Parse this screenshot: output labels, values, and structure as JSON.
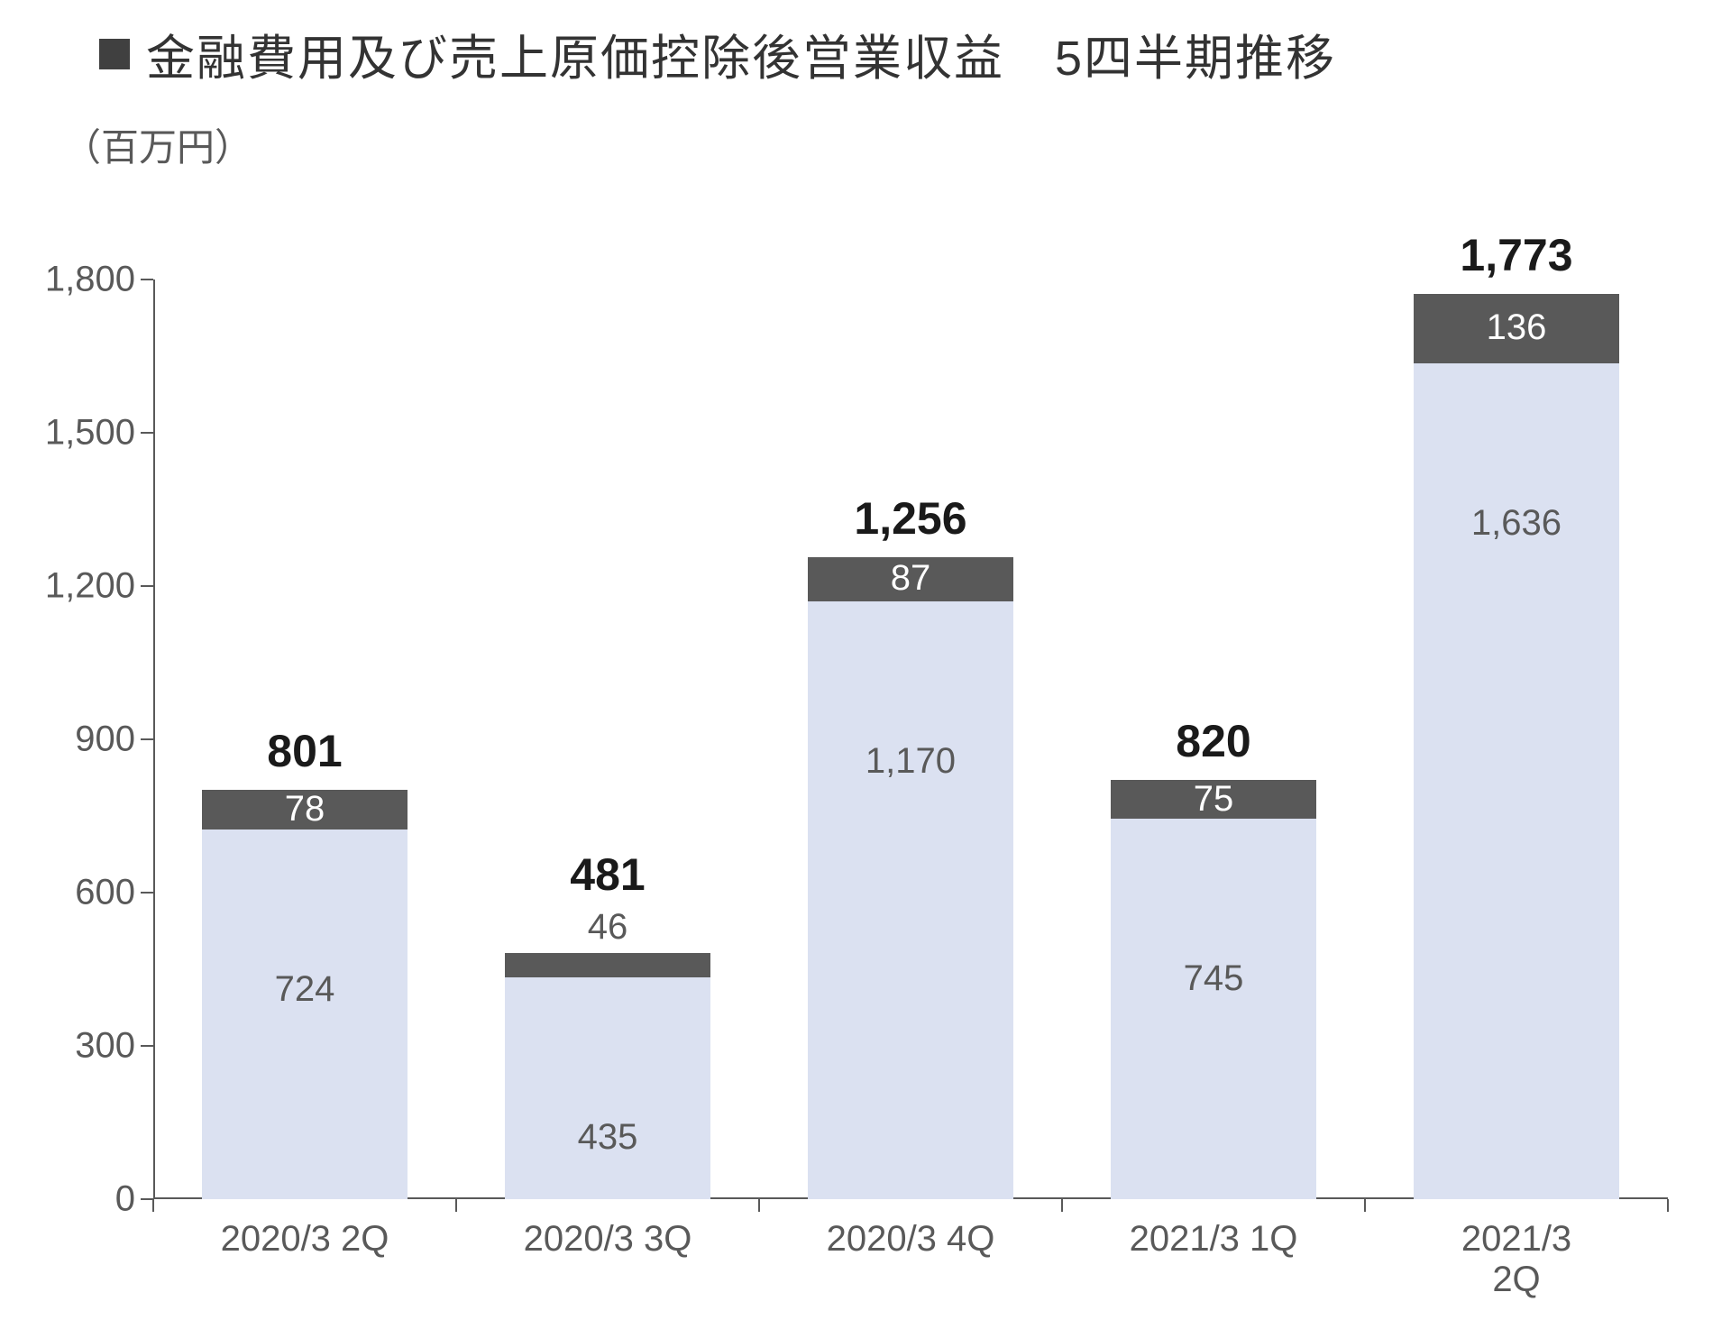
{
  "title": "金融費用及び売上原価控除後営業収益　5四半期推移",
  "unit": "（百万円）",
  "chart": {
    "type": "stacked-bar",
    "background_color": "#ffffff",
    "axis_color": "#595959",
    "ylim": [
      0,
      1800
    ],
    "ytick_step": 300,
    "yticks": [
      "0",
      "300",
      "600",
      "900",
      "1,200",
      "1,500",
      "1,800"
    ],
    "tick_fontsize": 40,
    "title_fontsize": 54,
    "bar_width_ratio": 0.68,
    "series_colors": {
      "lower": "#dbe1f1",
      "upper": "#595959"
    },
    "label_colors": {
      "lower": "#595959",
      "upper": "#ffffff",
      "total": "#1a1a1a"
    },
    "categories": [
      "2020/3 2Q",
      "2020/3 3Q",
      "2020/3 4Q",
      "2021/3 1Q",
      "2021/3 2Q"
    ],
    "data": [
      {
        "lower": 724,
        "upper": 78,
        "total": "801",
        "lower_label": "724",
        "upper_label": "78"
      },
      {
        "lower": 435,
        "upper": 46,
        "total": "481",
        "lower_label": "435",
        "upper_label": "46"
      },
      {
        "lower": 1170,
        "upper": 87,
        "total": "1,256",
        "lower_label": "1,170",
        "upper_label": "87"
      },
      {
        "lower": 745,
        "upper": 75,
        "total": "820",
        "lower_label": "745",
        "upper_label": "75"
      },
      {
        "lower": 1636,
        "upper": 136,
        "total": "1,773",
        "lower_label": "1,636",
        "upper_label": "136"
      }
    ]
  }
}
